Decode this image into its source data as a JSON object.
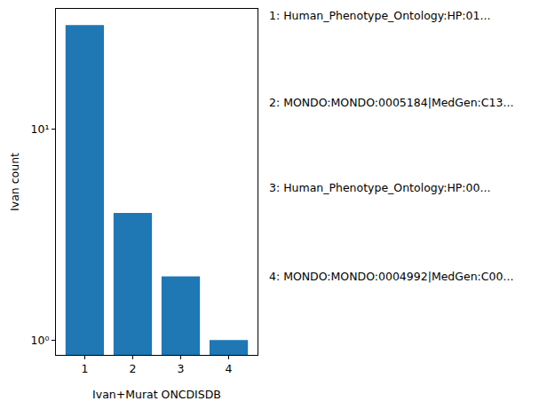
{
  "chart_data": {
    "type": "bar",
    "categories": [
      "1",
      "2",
      "3",
      "4"
    ],
    "values": [
      31,
      4,
      2,
      1
    ],
    "color": "#1f77b4",
    "x_label": "Ivan+Murat ONCDISDB",
    "y_label": "Ivan count",
    "log": "y",
    "ylim": [
      0.85,
      37
    ],
    "yticks": [
      {
        "value": 1,
        "label": "10⁰"
      },
      {
        "value": 10,
        "label": "10¹"
      }
    ],
    "grid": false,
    "annotations": [
      "1: Human_Phenotype_Ontology:HP:01...",
      "2: MONDO:MONDO:0005184|MedGen:C13...",
      "3: Human_Phenotype_Ontology:HP:00...",
      "4: MONDO:MONDO:0004992|MedGen:C00..."
    ]
  }
}
